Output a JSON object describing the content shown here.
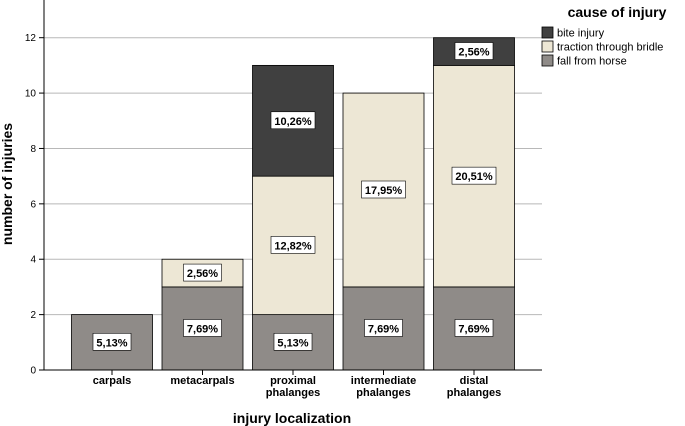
{
  "chart_data": {
    "type": "bar",
    "stacked": true,
    "categories": [
      [
        "carpals"
      ],
      [
        "metacarpals"
      ],
      [
        "proximal",
        "phalanges"
      ],
      [
        "intermediate",
        "phalanges"
      ],
      [
        "distal",
        "phalanges"
      ]
    ],
    "series": [
      {
        "name": "fall from horse",
        "color": "#8f8b88",
        "values": [
          2,
          3,
          2,
          3,
          3
        ],
        "labels": [
          "5,13%",
          "7,69%",
          "5,13%",
          "7,69%",
          "7,69%"
        ]
      },
      {
        "name": "traction through bridle",
        "color": "#ede7d5",
        "values": [
          0,
          1,
          5,
          7,
          8
        ],
        "labels": [
          "",
          "2,56%",
          "12,82%",
          "17,95%",
          "20,51%"
        ]
      },
      {
        "name": "bite injury",
        "color": "#404040",
        "values": [
          0,
          0,
          4,
          0,
          1
        ],
        "labels": [
          "",
          "",
          "10,26%",
          "",
          "2,56%"
        ]
      }
    ],
    "xlabel": "injury localization",
    "ylabel": "number of injuries",
    "ylim": [
      0,
      13
    ],
    "yticks": [
      0,
      2,
      4,
      6,
      8,
      10,
      12
    ],
    "grid": true,
    "legend": {
      "title": "cause of injury",
      "position": "top-right",
      "order": [
        "bite injury",
        "traction through bridle",
        "fall from horse"
      ]
    }
  }
}
